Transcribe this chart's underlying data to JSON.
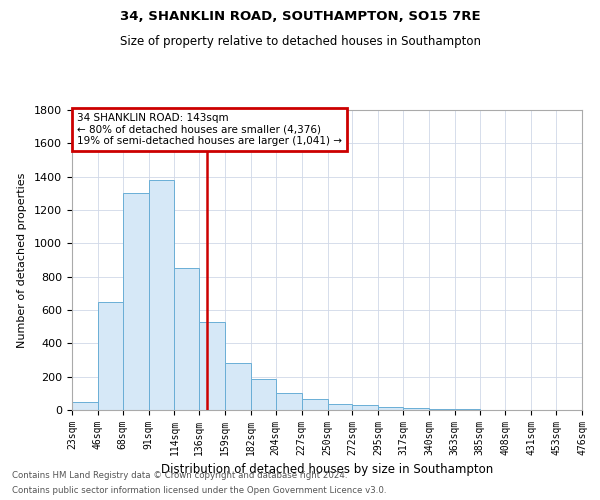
{
  "title": "34, SHANKLIN ROAD, SOUTHAMPTON, SO15 7RE",
  "subtitle": "Size of property relative to detached houses in Southampton",
  "xlabel": "Distribution of detached houses by size in Southampton",
  "ylabel": "Number of detached properties",
  "footnote1": "Contains HM Land Registry data © Crown copyright and database right 2024.",
  "footnote2": "Contains public sector information licensed under the Open Government Licence v3.0.",
  "annotation_title": "34 SHANKLIN ROAD: 143sqm",
  "annotation_line1": "← 80% of detached houses are smaller (4,376)",
  "annotation_line2": "19% of semi-detached houses are larger (1,041) →",
  "property_size": 143,
  "bin_edges": [
    23,
    46,
    68,
    91,
    114,
    136,
    159,
    182,
    204,
    227,
    250,
    272,
    295,
    317,
    340,
    363,
    385,
    408,
    431,
    453,
    476
  ],
  "bin_heights": [
    50,
    650,
    1300,
    1380,
    850,
    530,
    280,
    185,
    105,
    65,
    35,
    30,
    20,
    12,
    8,
    5,
    3,
    2,
    1,
    1
  ],
  "bar_color": "#d6e8f7",
  "bar_edge_color": "#6aaed6",
  "vline_color": "#cc0000",
  "vline_x": 143,
  "annotation_box_color": "#cc0000",
  "ylim": [
    0,
    1800
  ],
  "yticks": [
    0,
    200,
    400,
    600,
    800,
    1000,
    1200,
    1400,
    1600,
    1800
  ],
  "background_color": "#ffffff",
  "grid_color": "#d0d8e8"
}
